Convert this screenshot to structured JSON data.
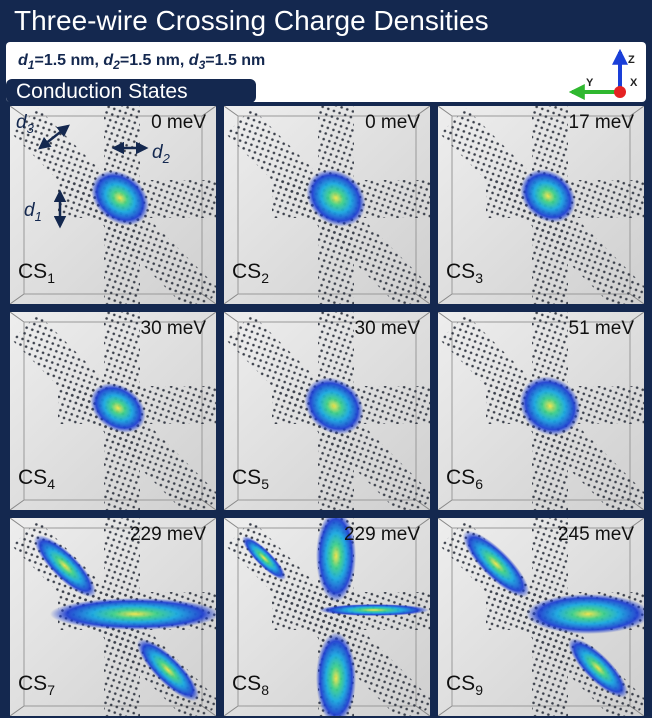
{
  "header": {
    "title": "Three-wire Crossing Charge Densities"
  },
  "parameters": {
    "items": [
      {
        "symbol": "d",
        "sub": "1",
        "value": "=1.5 nm"
      },
      {
        "symbol": "d",
        "sub": "2",
        "value": "=1.5 nm"
      },
      {
        "symbol": "d",
        "sub": "3",
        "value": "=1.5 nm"
      }
    ],
    "separator": ", "
  },
  "section": {
    "label": "Conduction States"
  },
  "axes": {
    "z": "Z",
    "y": "Y",
    "x": "X"
  },
  "annotations": {
    "d3": {
      "symbol": "d",
      "sub": "3"
    },
    "d2": {
      "symbol": "d",
      "sub": "2"
    },
    "d1": {
      "symbol": "d",
      "sub": "1"
    }
  },
  "panels": [
    {
      "energy": "0 meV",
      "state": "CS",
      "sub": "1"
    },
    {
      "energy": "0 meV",
      "state": "CS",
      "sub": "2"
    },
    {
      "energy": "17 meV",
      "state": "CS",
      "sub": "3"
    },
    {
      "energy": "30 meV",
      "state": "CS",
      "sub": "4"
    },
    {
      "energy": "30 meV",
      "state": "CS",
      "sub": "5"
    },
    {
      "energy": "51 meV",
      "state": "CS",
      "sub": "6"
    },
    {
      "energy": "229 meV",
      "state": "CS",
      "sub": "7"
    },
    {
      "energy": "229 meV",
      "state": "CS",
      "sub": "8"
    },
    {
      "energy": "245 meV",
      "state": "CS",
      "sub": "9"
    }
  ]
}
